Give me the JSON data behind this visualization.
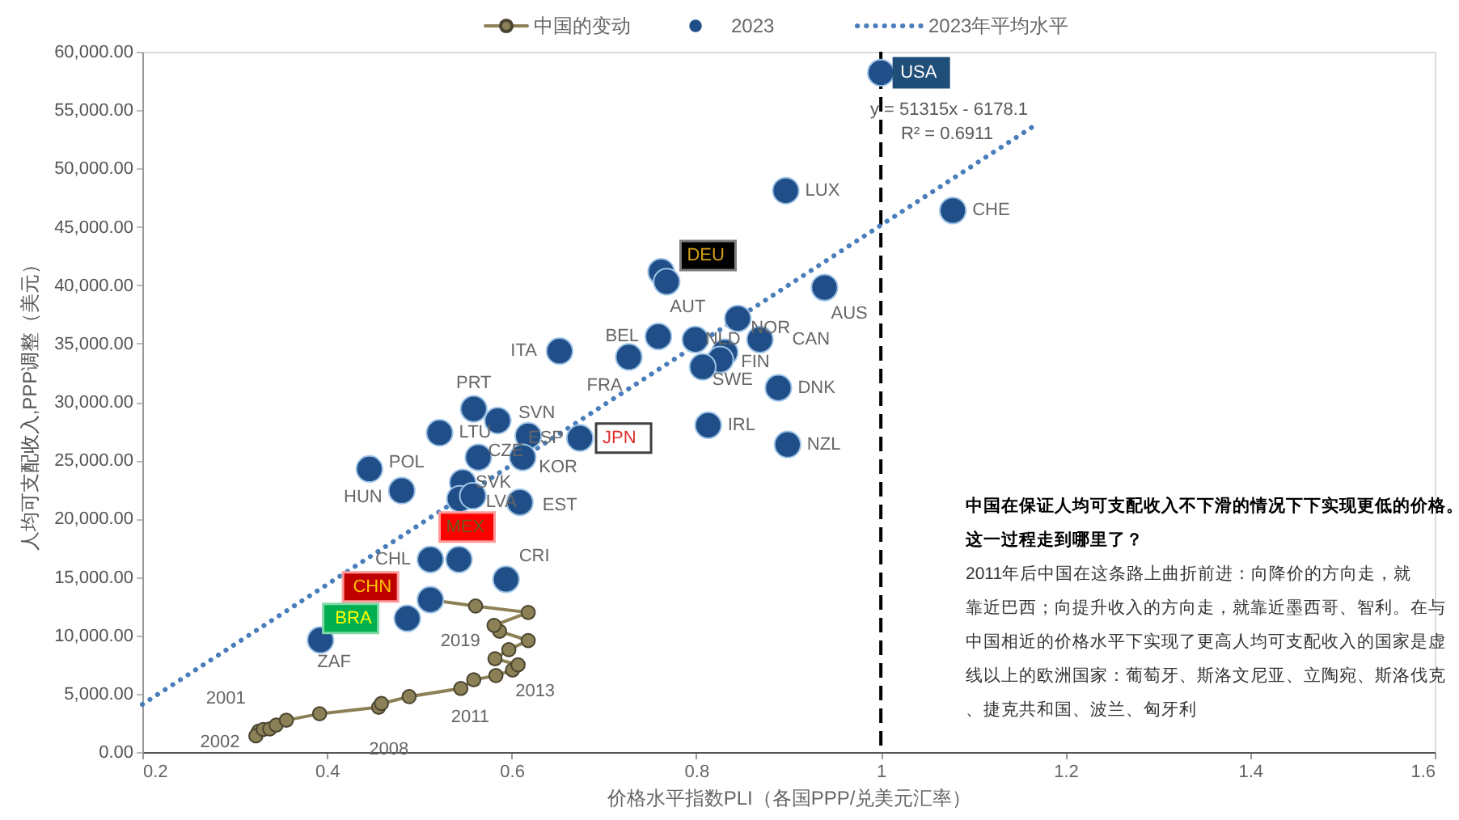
{
  "chart_data": {
    "type": "scatter",
    "xlabel": "价格水平指数PLI（各国PPP/兑美元汇率）",
    "ylabel": "人均可支配收入,PPP调整（美元）",
    "xlim": [
      0.2,
      1.6
    ],
    "xticks": [
      0.2,
      0.4,
      0.6,
      0.8,
      1,
      1.2,
      1.4,
      1.6
    ],
    "ylim": [
      0,
      60000
    ],
    "yticks": [
      {
        "value": 0,
        "label": "0.00"
      },
      {
        "value": 5000,
        "label": "5,000.00"
      },
      {
        "value": 10000,
        "label": "10,000.00"
      },
      {
        "value": 15000,
        "label": "15,000.00"
      },
      {
        "value": 20000,
        "label": "20,000.00"
      },
      {
        "value": 25000,
        "label": "25,000.00"
      },
      {
        "value": 30000,
        "label": "30,000.00"
      },
      {
        "value": 35000,
        "label": "35,000.00"
      },
      {
        "value": 40000,
        "label": "40,000.00"
      },
      {
        "value": 45000,
        "label": "45,000.00"
      },
      {
        "value": 50000,
        "label": "50,000.00"
      },
      {
        "value": 55000,
        "label": "55,000.00"
      },
      {
        "value": 60000,
        "label": "60,000.00"
      }
    ],
    "grid": false,
    "legend": "top",
    "series": [
      {
        "name": "2023年平均水平",
        "type": "line",
        "color": "#4a7ebb",
        "line_style": "dotted",
        "marker": "none",
        "x": [
          0.2,
          1.171
        ],
        "values": [
          4085,
          53910
        ]
      },
      {
        "name": "中国的变动",
        "type": "line",
        "color": "#8c8056",
        "line_style": "solid",
        "marker": "circle",
        "x": [
          0.326,
          0.323,
          0.331,
          0.338,
          0.345,
          0.356,
          0.392,
          0.456,
          0.459,
          0.489,
          0.545,
          0.559,
          0.583,
          0.601,
          0.607,
          0.582,
          0.597,
          0.618,
          0.587,
          0.581,
          0.618,
          0.561,
          0.512
        ],
        "values": [
          1800,
          1390,
          1940,
          1980,
          2310,
          2730,
          3280,
          3840,
          4160,
          4750,
          5450,
          6190,
          6550,
          7030,
          7480,
          8000,
          8770,
          9560,
          10350,
          10850,
          11960,
          12510,
          13050
        ]
      },
      {
        "name": "2023",
        "color": "#1f4e89",
        "marker": "circle",
        "x": [
          1.0,
          0.897,
          1.078,
          0.762,
          0.768,
          0.939,
          0.845,
          0.759,
          0.799,
          0.869,
          0.652,
          0.831,
          0.826,
          0.727,
          0.807,
          0.889,
          0.813,
          0.899,
          0.559,
          0.585,
          0.522,
          0.618,
          0.674,
          0.564,
          0.612,
          0.446,
          0.481,
          0.547,
          0.544,
          0.558,
          0.609,
          0.512,
          0.543,
          0.594,
          0.512,
          0.487,
          0.393
        ],
        "values": [
          58200,
          48100,
          46400,
          41150,
          40300,
          39800,
          37150,
          35600,
          35340,
          35350,
          34350,
          34250,
          33630,
          33850,
          33000,
          31200,
          28000,
          26350,
          29400,
          28400,
          27350,
          27100,
          26900,
          25250,
          25250,
          24250,
          22400,
          23100,
          21700,
          21950,
          21400,
          16500,
          16500,
          14800,
          13050,
          11450,
          9600
        ]
      }
    ],
    "ref_lines": [
      {
        "axis": "x",
        "value": 1,
        "color": "#000000",
        "line_style": "dashed"
      }
    ],
    "annotations": [
      {
        "text": "USA",
        "x": 1.0,
        "y": 58200
      },
      {
        "text": "LUX",
        "x": 0.897,
        "y": 48100
      },
      {
        "text": "CHE",
        "x": 1.078,
        "y": 46400
      },
      {
        "text": "DEU",
        "x": 0.762,
        "y": 41150
      },
      {
        "text": "AUT",
        "x": 0.768,
        "y": 40300
      },
      {
        "text": "AUS",
        "x": 0.939,
        "y": 39800
      },
      {
        "text": "NOR",
        "x": 0.845,
        "y": 37150
      },
      {
        "text": "BEL",
        "x": 0.759,
        "y": 35600
      },
      {
        "text": "NLD",
        "x": 0.799,
        "y": 35340
      },
      {
        "text": "CAN",
        "x": 0.869,
        "y": 35350
      },
      {
        "text": "ITA",
        "x": 0.652,
        "y": 34350
      },
      {
        "text": "FIN",
        "x": 0.831,
        "y": 34250
      },
      {
        "text": "FRA",
        "x": 0.727,
        "y": 33850
      },
      {
        "text": "SWE",
        "x": 0.807,
        "y": 33000
      },
      {
        "text": "DNK",
        "x": 0.889,
        "y": 31200
      },
      {
        "text": "IRL",
        "x": 0.813,
        "y": 28000
      },
      {
        "text": "NZL",
        "x": 0.899,
        "y": 26350
      },
      {
        "text": "PRT",
        "x": 0.559,
        "y": 29400
      },
      {
        "text": "LTU",
        "x": 0.522,
        "y": 27350
      },
      {
        "text": "SVN",
        "x": 0.618,
        "y": 27100
      },
      {
        "text": "ESP",
        "x": 0.674,
        "y": 26900
      },
      {
        "text": "JPN",
        "x": 0.674,
        "y": 26900
      },
      {
        "text": "CZE",
        "x": 0.564,
        "y": 25250
      },
      {
        "text": "KOR",
        "x": 0.612,
        "y": 25250
      },
      {
        "text": "POL",
        "x": 0.446,
        "y": 24250
      },
      {
        "text": "HUN",
        "x": 0.481,
        "y": 22400
      },
      {
        "text": "SVK",
        "x": 0.547,
        "y": 23100
      },
      {
        "text": "LVA",
        "x": 0.558,
        "y": 21950
      },
      {
        "text": "EST",
        "x": 0.609,
        "y": 21400
      },
      {
        "text": "CHL",
        "x": 0.512,
        "y": 16500
      },
      {
        "text": "MEX",
        "x": 0.543,
        "y": 16500
      },
      {
        "text": "CRI",
        "x": 0.594,
        "y": 14800
      },
      {
        "text": "CHN",
        "x": 0.512,
        "y": 13050
      },
      {
        "text": "BRA",
        "x": 0.487,
        "y": 11450
      },
      {
        "text": "ZAF",
        "x": 0.393,
        "y": 9600
      },
      {
        "text": "2001",
        "x": 0.326,
        "y": 1800
      },
      {
        "text": "2002",
        "x": 0.323,
        "y": 1390
      },
      {
        "text": "2008",
        "x": 0.456,
        "y": 3840
      },
      {
        "text": "2011",
        "x": 0.545,
        "y": 5450
      },
      {
        "text": "2013",
        "x": 0.583,
        "y": 6550
      },
      {
        "text": "2019",
        "x": 0.587,
        "y": 10350
      },
      "y = 51315x - 6178.1",
      "R² = 0.6911",
      "中国在保证人均可支配收入不下滑的情况下下实现更低的价格。这一过程走到哪里了？",
      "2011年后中国在这条路上曲折前进：向降价的方向走，就靠近巴西；向提升收入的方向走，就靠近墨西哥、智利。在与中国相近的价格水平下实现了更高人均可支配收入的国家是虚线以上的欧洲国家：葡萄牙、斯洛文尼亚、立陶宛、斯洛伐克、捷克共和国、波兰、匈牙利"
    ]
  }
}
